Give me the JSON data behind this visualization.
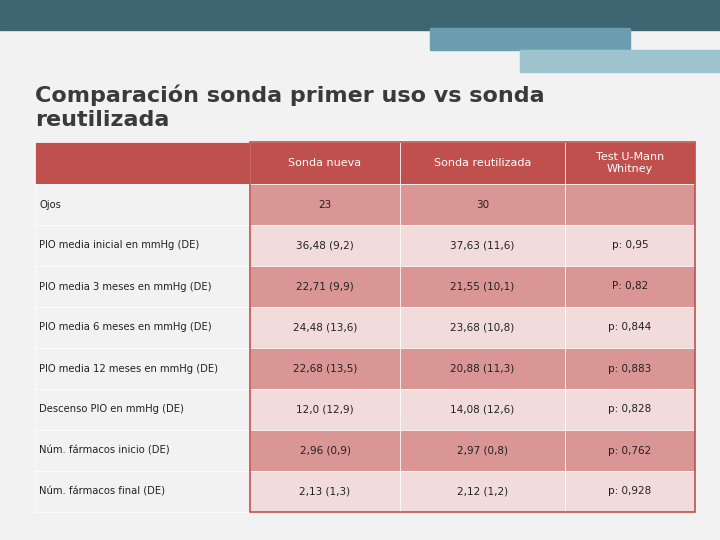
{
  "title_line1": "Comparación sonda primer uso vs sonda",
  "title_line2": "reutilizada",
  "title_fontsize": 16,
  "title_color": "#3a3a3a",
  "background_color": "#f2f2f2",
  "top_bar_color": "#3d6572",
  "deco1_color": "#6d9eaf",
  "deco2_color": "#9dc3cf",
  "header_bg": "#c0504d",
  "header_text_color": "#ffffff",
  "row_dark_bg": "#d99694",
  "row_light_bg": "#f2dcdb",
  "label_bg": "#f2f2f2",
  "border_color": "#c0504d",
  "col_headers": [
    "Sonda nueva",
    "Sonda reutilizada",
    "Test U-Mann\nWhitney"
  ],
  "row_labels": [
    "Ojos",
    "PIO media inicial en mmHg (DE)",
    "PIO media 3 meses en mmHg (DE)",
    "PIO media 6 meses en mmHg (DE)",
    "PIO media 12 meses en mmHg (DE)",
    "Descenso PIO en mmHg (DE)",
    "Núm. fármacos inicio (DE)",
    "Núm. fármacos final (DE)"
  ],
  "col1_values": [
    "23",
    "36,48 (9,2)",
    "22,71 (9,9)",
    "24,48 (13,6)",
    "22,68 (13,5)",
    "12,0 (12,9)",
    "2,96 (0,9)",
    "2,13 (1,3)"
  ],
  "col2_values": [
    "30",
    "37,63 (11,6)",
    "21,55 (10,1)",
    "23,68 (10,8)",
    "20,88 (11,3)",
    "14,08 (12,6)",
    "2,97 (0,8)",
    "2,12 (1,2)"
  ],
  "col3_values": [
    "",
    "p: 0,95",
    "P: 0,82",
    "p: 0,844",
    "p: 0,883",
    "p: 0,828",
    "p: 0,762",
    "p: 0,928"
  ]
}
